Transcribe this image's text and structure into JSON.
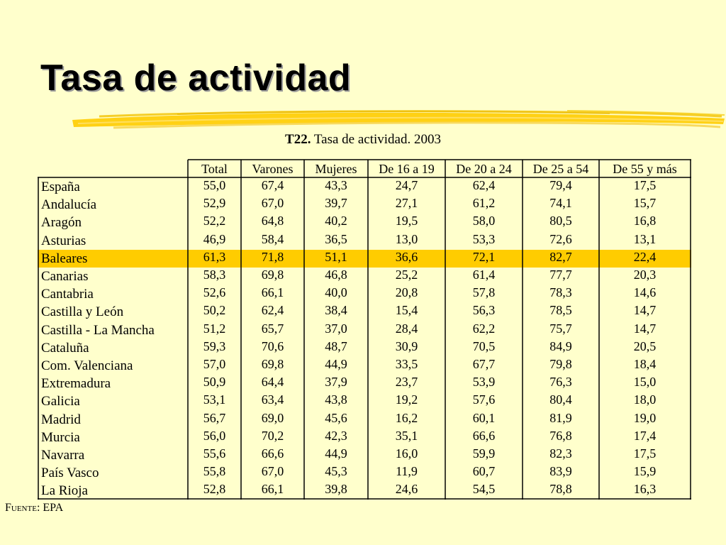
{
  "slide": {
    "title": "Tasa de actividad",
    "table_code": "T22.",
    "table_caption": "Tasa de actividad. 2003",
    "source_label": "Fuente:",
    "source_value": "EPA"
  },
  "table": {
    "columns": [
      "Total",
      "Varones",
      "Mujeres",
      "De 16 a 19",
      "De 20 a 24",
      "De 25 a 54",
      "De 55 y más"
    ],
    "highlighted_row": "Baleares",
    "highlight_color": "#ffcc00",
    "rows": [
      {
        "region": "España",
        "values": [
          "55,0",
          "67,4",
          "43,3",
          "24,7",
          "62,4",
          "79,4",
          "17,5"
        ]
      },
      {
        "region": "Andalucía",
        "values": [
          "52,9",
          "67,0",
          "39,7",
          "27,1",
          "61,2",
          "74,1",
          "15,7"
        ]
      },
      {
        "region": "Aragón",
        "values": [
          "52,2",
          "64,8",
          "40,2",
          "19,5",
          "58,0",
          "80,5",
          "16,8"
        ]
      },
      {
        "region": "Asturias",
        "values": [
          "46,9",
          "58,4",
          "36,5",
          "13,0",
          "53,3",
          "72,6",
          "13,1"
        ]
      },
      {
        "region": "Baleares",
        "values": [
          "61,3",
          "71,8",
          "51,1",
          "36,6",
          "72,1",
          "82,7",
          "22,4"
        ]
      },
      {
        "region": "Canarias",
        "values": [
          "58,3",
          "69,8",
          "46,8",
          "25,2",
          "61,4",
          "77,7",
          "20,3"
        ]
      },
      {
        "region": "Cantabria",
        "values": [
          "52,6",
          "66,1",
          "40,0",
          "20,8",
          "57,8",
          "78,3",
          "14,6"
        ]
      },
      {
        "region": "Castilla y León",
        "values": [
          "50,2",
          "62,4",
          "38,4",
          "15,4",
          "56,3",
          "78,5",
          "14,7"
        ]
      },
      {
        "region": "Castilla - La Mancha",
        "values": [
          "51,2",
          "65,7",
          "37,0",
          "28,4",
          "62,2",
          "75,7",
          "14,7"
        ]
      },
      {
        "region": "Cataluña",
        "values": [
          "59,3",
          "70,6",
          "48,7",
          "30,9",
          "70,5",
          "84,9",
          "20,5"
        ]
      },
      {
        "region": "Com. Valenciana",
        "values": [
          "57,0",
          "69,8",
          "44,9",
          "33,5",
          "67,7",
          "79,8",
          "18,4"
        ]
      },
      {
        "region": "Extremadura",
        "values": [
          "50,9",
          "64,4",
          "37,9",
          "23,7",
          "53,9",
          "76,3",
          "15,0"
        ]
      },
      {
        "region": "Galicia",
        "values": [
          "53,1",
          "63,4",
          "43,8",
          "19,2",
          "57,6",
          "80,4",
          "18,0"
        ]
      },
      {
        "region": "Madrid",
        "values": [
          "56,7",
          "69,0",
          "45,6",
          "16,2",
          "60,1",
          "81,9",
          "19,0"
        ]
      },
      {
        "region": "Murcia",
        "values": [
          "56,0",
          "70,2",
          "42,3",
          "35,1",
          "66,6",
          "76,8",
          "17,4"
        ]
      },
      {
        "region": "Navarra",
        "values": [
          "55,6",
          "66,6",
          "44,9",
          "16,0",
          "59,9",
          "82,3",
          "17,5"
        ]
      },
      {
        "region": "País Vasco",
        "values": [
          "55,8",
          "67,0",
          "45,3",
          "11,9",
          "60,7",
          "83,9",
          "15,9"
        ]
      },
      {
        "region": "La Rioja",
        "values": [
          "52,8",
          "66,1",
          "39,8",
          "24,6",
          "54,5",
          "78,8",
          "16,3"
        ]
      }
    ]
  }
}
